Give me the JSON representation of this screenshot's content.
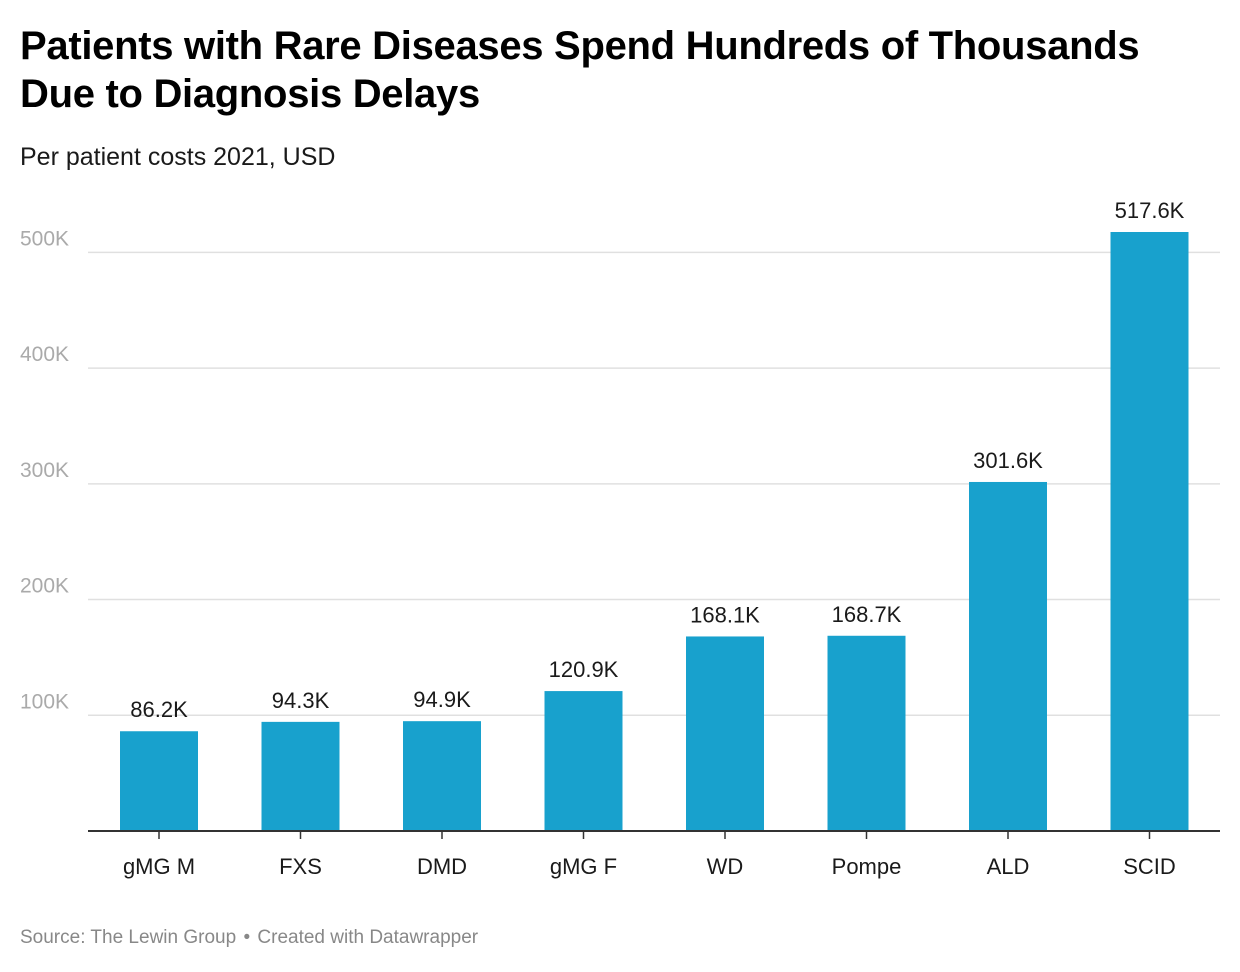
{
  "header": {
    "title": "Patients with Rare Diseases Spend Hundreds of Thousands Due to Diagnosis Delays",
    "subtitle": "Per patient costs 2021, USD"
  },
  "footer": {
    "source": "Source: The Lewin Group",
    "separator": "•",
    "credit": "Created with Datawrapper"
  },
  "colors": {
    "bar": "#18a1cd",
    "grid": "#e0e0e0",
    "axis": "#333333",
    "tick_label": "#aaaaaa"
  },
  "chart_data": {
    "type": "bar",
    "title": "Patients with Rare Diseases Spend Hundreds of Thousands Due to Diagnosis Delays",
    "subtitle": "Per patient costs 2021, USD",
    "xlabel": "",
    "ylabel": "",
    "categories": [
      "gMG M",
      "FXS",
      "DMD",
      "gMG F",
      "WD",
      "Pompe",
      "ALD",
      "SCID"
    ],
    "values": [
      86.2,
      94.3,
      94.9,
      120.9,
      168.1,
      168.7,
      301.6,
      517.6
    ],
    "value_labels": [
      "86.2K",
      "94.3K",
      "94.9K",
      "120.9K",
      "168.1K",
      "168.7K",
      "301.6K",
      "517.6K"
    ],
    "units": "thousands USD",
    "ylim": [
      0,
      517.6
    ],
    "y_ticks": [
      100,
      200,
      300,
      400,
      500
    ],
    "y_tick_labels": [
      "100K",
      "200K",
      "300K",
      "400K",
      "500K"
    ],
    "grid": true,
    "source": "The Lewin Group"
  }
}
